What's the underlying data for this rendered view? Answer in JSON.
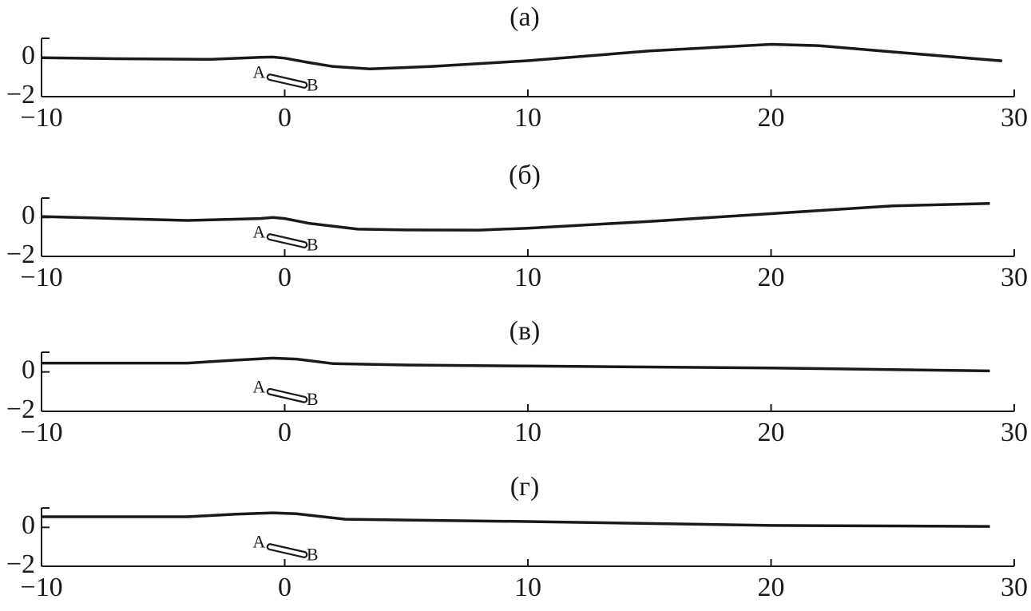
{
  "chart_data": [
    {
      "type": "line",
      "title": "(а)",
      "x": [
        -10,
        -7,
        -3,
        -1,
        -0.5,
        0,
        1,
        2,
        3.5,
        6,
        10,
        15,
        20,
        22,
        25,
        29.5
      ],
      "series": [
        {
          "color": "#1a1a1a",
          "values": [
            0.0,
            -0.05,
            -0.08,
            0.02,
            0.04,
            -0.02,
            -0.25,
            -0.45,
            -0.57,
            -0.45,
            -0.15,
            0.35,
            0.69,
            0.62,
            0.3,
            -0.16
          ]
        }
      ],
      "annotations": [
        "A",
        "B"
      ],
      "xlim": [
        -10,
        30
      ],
      "ylim": [
        -2,
        1
      ],
      "xticks": [
        {
          "value": -10,
          "label": "−10"
        },
        0,
        10,
        20,
        30
      ],
      "yticks": [
        {
          "value": -2,
          "label": "−2"
        },
        0
      ]
    },
    {
      "type": "line",
      "title": "(б)",
      "x": [
        -10,
        -7,
        -4,
        -1,
        -0.5,
        0,
        1,
        3,
        5,
        8,
        10,
        15,
        20,
        25,
        29
      ],
      "series": [
        {
          "color": "#1a1a1a",
          "values": [
            0.05,
            -0.05,
            -0.15,
            -0.05,
            0.0,
            -0.05,
            -0.3,
            -0.6,
            -0.64,
            -0.65,
            -0.55,
            -0.2,
            0.2,
            0.6,
            0.72
          ]
        }
      ],
      "annotations": [
        "A",
        "B"
      ],
      "xlim": [
        -10,
        30
      ],
      "ylim": [
        -2,
        1
      ],
      "xticks": [
        {
          "value": -10,
          "label": "−10"
        },
        0,
        10,
        20,
        30
      ],
      "yticks": [
        {
          "value": -2,
          "label": "−2"
        },
        0
      ]
    },
    {
      "type": "line",
      "title": "(в)",
      "x": [
        -10,
        -4,
        -2,
        -0.5,
        0.5,
        2,
        5,
        10,
        20,
        29
      ],
      "series": [
        {
          "color": "#1a1a1a",
          "values": [
            0.45,
            0.45,
            0.6,
            0.7,
            0.65,
            0.42,
            0.35,
            0.3,
            0.2,
            0.05
          ]
        }
      ],
      "annotations": [
        "A",
        "B"
      ],
      "xlim": [
        -10,
        30
      ],
      "ylim": [
        -2,
        1
      ],
      "xticks": [
        {
          "value": -10,
          "label": "−10"
        },
        0,
        10,
        20,
        30
      ],
      "yticks": [
        {
          "value": -2,
          "label": "−2"
        },
        0
      ]
    },
    {
      "type": "line",
      "title": "(г)",
      "x": [
        -10,
        -4,
        -2,
        -0.5,
        0.5,
        2.5,
        5,
        10,
        20,
        29
      ],
      "series": [
        {
          "color": "#1a1a1a",
          "values": [
            0.55,
            0.55,
            0.68,
            0.75,
            0.7,
            0.42,
            0.38,
            0.3,
            0.1,
            0.05
          ]
        }
      ],
      "annotations": [
        "A",
        "B"
      ],
      "xlim": [
        -10,
        30
      ],
      "ylim": [
        -2,
        1
      ],
      "xticks": [
        {
          "value": -10,
          "label": "−10"
        },
        0,
        10,
        20,
        30
      ],
      "yticks": [
        {
          "value": -2,
          "label": "−2"
        },
        0
      ]
    }
  ]
}
